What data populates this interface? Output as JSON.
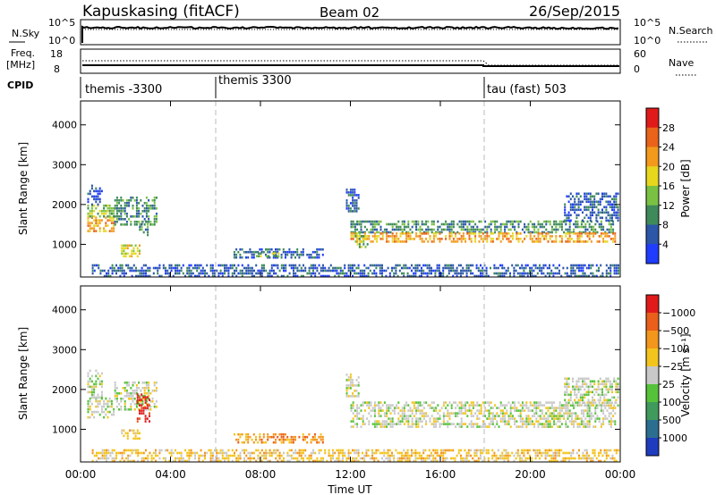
{
  "header": {
    "station": "Kapuskasing (fitACF)",
    "beam": "Beam 02",
    "date": "26/Sep/2015"
  },
  "noise_panel": {
    "left_label": "N.Sky",
    "right_label": "N.Search",
    "left_ticks": [
      "10^5",
      "10^0"
    ],
    "right_ticks": [
      "10^5",
      "10^0"
    ]
  },
  "freq_panel": {
    "left_label_1": "Freq.",
    "left_label_2": "[MHz]",
    "right_label": "Nave",
    "left_ticks": [
      "18",
      "8"
    ],
    "right_ticks": [
      "60",
      "0"
    ]
  },
  "cpid": {
    "label": "CPID",
    "segments": [
      {
        "name": "themis -3300",
        "start_hour": 0
      },
      {
        "name": "themis 3300",
        "start_hour": 6
      },
      {
        "name": "tau (fast) 503",
        "start_hour": 18
      }
    ]
  },
  "axes": {
    "ylabel": "Slant Range [km]",
    "xlabel": "Time UT",
    "y_ticks": [
      "1000",
      "2000",
      "3000",
      "4000"
    ],
    "x_ticks": [
      "00:00",
      "04:00",
      "08:00",
      "12:00",
      "16:00",
      "20:00",
      "00:00"
    ],
    "x_range_hours": [
      0,
      24
    ],
    "y_range_km": [
      180,
      4600
    ]
  },
  "power_colorbar": {
    "label": "Power [dB]",
    "ticks": [
      "4",
      "8",
      "12",
      "16",
      "20",
      "24",
      "28"
    ],
    "colors": [
      "#1f3cff",
      "#2c56a8",
      "#3e8a5a",
      "#7ac143",
      "#e6d71e",
      "#f39a1c",
      "#e9631a",
      "#e01a1a"
    ]
  },
  "velocity_colorbar": {
    "label": "Velocity [m s⁻¹]",
    "ticks": [
      "1000",
      "500",
      "100",
      "25",
      "−25",
      "−100",
      "−500",
      "−1000"
    ],
    "colors": [
      "#1f3cbf",
      "#2c6e8f",
      "#3f9a5c",
      "#56c23a",
      "#c8c8c8",
      "#f3c41c",
      "#f3961c",
      "#ea5f1a",
      "#e01a1a"
    ]
  },
  "chart_data": [
    {
      "type": "heatmap",
      "name": "Power",
      "x_unit": "hours UT",
      "y_unit": "km",
      "regions": [
        {
          "t0": 0.3,
          "t1": 1.5,
          "r0": 1300,
          "r1": 1700,
          "level": 5
        },
        {
          "t0": 0.3,
          "t1": 1.5,
          "r0": 1700,
          "r1": 2000,
          "level": 3
        },
        {
          "t0": 0.3,
          "t1": 1.0,
          "r0": 2000,
          "r1": 2500,
          "level": 1
        },
        {
          "t0": 1.5,
          "t1": 3.4,
          "r0": 1500,
          "r1": 2200,
          "level": 2
        },
        {
          "t0": 1.8,
          "t1": 2.6,
          "r0": 700,
          "r1": 1000,
          "level": 4
        },
        {
          "t0": 2.6,
          "t1": 3.0,
          "r0": 1200,
          "r1": 1600,
          "level": 2
        },
        {
          "t0": 6.8,
          "t1": 10.8,
          "r0": 650,
          "r1": 900,
          "level": 1
        },
        {
          "t0": 7.8,
          "t1": 8.8,
          "r0": 700,
          "r1": 800,
          "level": 3
        },
        {
          "t0": 11.8,
          "t1": 12.4,
          "r0": 1800,
          "r1": 2400,
          "level": 1
        },
        {
          "t0": 12.0,
          "t1": 23.8,
          "r0": 1300,
          "r1": 1600,
          "level": 2
        },
        {
          "t0": 12.0,
          "t1": 23.8,
          "r0": 1050,
          "r1": 1300,
          "level": 5
        },
        {
          "t0": 12.2,
          "t1": 12.8,
          "r0": 900,
          "r1": 1300,
          "level": 3
        },
        {
          "t0": 21.5,
          "t1": 23.9,
          "r0": 1600,
          "r1": 2300,
          "level": 1
        },
        {
          "t0": 0.5,
          "t1": 23.9,
          "r0": 200,
          "r1": 500,
          "level": 1
        }
      ]
    },
    {
      "type": "heatmap",
      "name": "Velocity",
      "x_unit": "hours UT",
      "y_unit": "km",
      "regions": [
        {
          "t0": 0.3,
          "t1": 1.5,
          "r0": 1300,
          "r1": 1800,
          "level": 4
        },
        {
          "t0": 0.3,
          "t1": 1.0,
          "r0": 1800,
          "r1": 2500,
          "level": 4
        },
        {
          "t0": 1.5,
          "t1": 3.4,
          "r0": 1500,
          "r1": 2200,
          "level": 4
        },
        {
          "t0": 2.5,
          "t1": 3.1,
          "r0": 1200,
          "r1": 1900,
          "level": 8
        },
        {
          "t0": 1.8,
          "t1": 2.6,
          "r0": 750,
          "r1": 1000,
          "level": 5
        },
        {
          "t0": 6.8,
          "t1": 10.8,
          "r0": 650,
          "r1": 900,
          "level": 6
        },
        {
          "t0": 11.8,
          "t1": 12.4,
          "r0": 1800,
          "r1": 2400,
          "level": 4
        },
        {
          "t0": 12.0,
          "t1": 23.8,
          "r0": 1050,
          "r1": 1700,
          "level": 4
        },
        {
          "t0": 21.5,
          "t1": 23.9,
          "r0": 1600,
          "r1": 2300,
          "level": 4
        },
        {
          "t0": 0.5,
          "t1": 23.9,
          "r0": 200,
          "r1": 500,
          "level": 5
        }
      ]
    }
  ]
}
